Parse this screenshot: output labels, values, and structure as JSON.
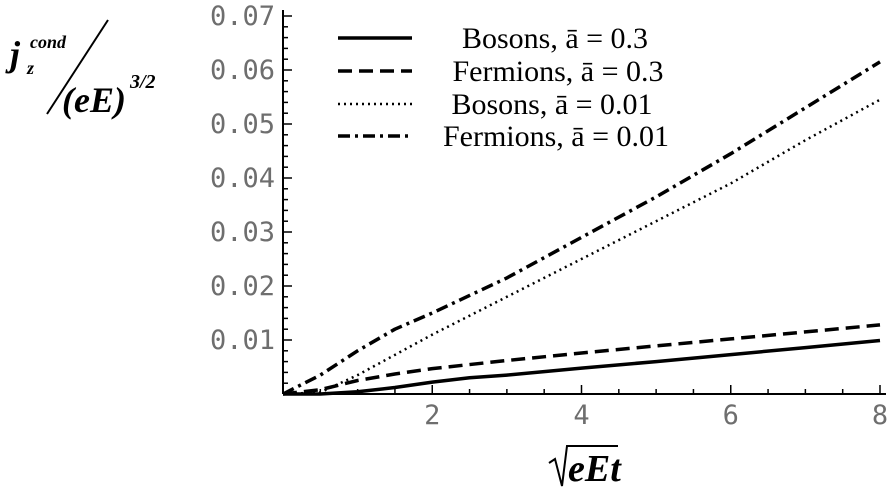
{
  "chart_data": {
    "type": "line",
    "ylabel_num_main": "j",
    "ylabel_num_sup": "cond",
    "ylabel_num_sub": "z",
    "ylabel_den_main": "(eE)",
    "ylabel_den_sup": "3/2",
    "xlabel_sqrt_arg": "eEt",
    "xlim": [
      0,
      8
    ],
    "ylim": [
      0,
      0.07
    ],
    "x_ticks": [
      "2",
      "4",
      "6",
      "8"
    ],
    "y_ticks": [
      "0.01",
      "0.02",
      "0.03",
      "0.04",
      "0.05",
      "0.06",
      "0.07"
    ],
    "grid": false,
    "legend_position": "top-center",
    "series": [
      {
        "name": "Bosons, ā = 0.3",
        "style": "solid",
        "x": [
          0,
          0.5,
          1.0,
          1.5,
          2.0,
          2.5,
          3,
          4,
          5,
          6,
          7,
          8
        ],
        "y": [
          0,
          0,
          0.0004,
          0.0012,
          0.0022,
          0.003,
          0.0035,
          0.0048,
          0.006,
          0.0073,
          0.0086,
          0.0099
        ]
      },
      {
        "name": "Fermions, ā = 0.3",
        "style": "dashed",
        "x": [
          0,
          0.5,
          1.0,
          1.5,
          2,
          3,
          4,
          5,
          6,
          7,
          8
        ],
        "y": [
          0,
          0.0008,
          0.0025,
          0.0037,
          0.0047,
          0.0062,
          0.0076,
          0.0089,
          0.0102,
          0.0115,
          0.0128
        ]
      },
      {
        "name": "Bosons, ā = 0.01",
        "style": "dotted",
        "x": [
          0,
          0.5,
          1,
          2,
          3,
          4,
          5,
          6,
          7,
          8
        ],
        "y": [
          0,
          0.0003,
          0.0035,
          0.011,
          0.018,
          0.025,
          0.032,
          0.039,
          0.047,
          0.0545
        ]
      },
      {
        "name": "Fermions, ā = 0.01",
        "style": "dashdot",
        "x": [
          0,
          0.5,
          1,
          1.5,
          2,
          3,
          4,
          5,
          6,
          7,
          8
        ],
        "y": [
          0,
          0.0035,
          0.008,
          0.012,
          0.015,
          0.0215,
          0.029,
          0.0365,
          0.0445,
          0.053,
          0.0615
        ]
      }
    ]
  }
}
